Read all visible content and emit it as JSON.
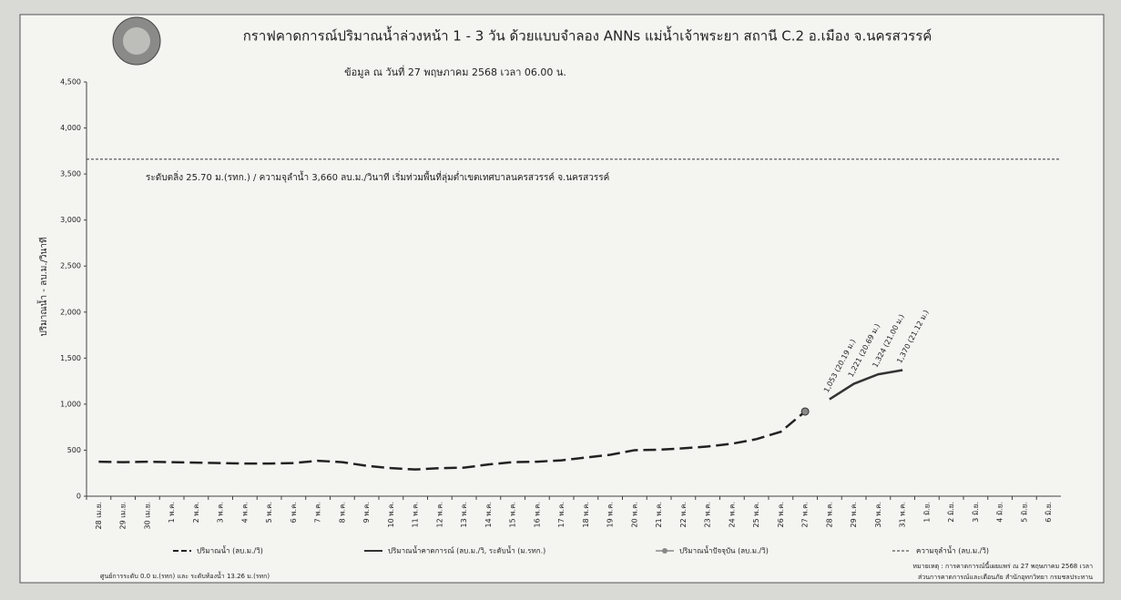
{
  "chart_data": {
    "type": "line",
    "title": "กราฟคาดการณ์ปริมาณน้ำล่วงหน้า 1 - 3 วัน  ด้วยแบบจำลอง ANNs แม่น้ำเจ้าพระยา สถานี C.2 อ.เมือง จ.นครสวรรค์",
    "subtitle": "ข้อมูล ณ วันที่     27 พฤษภาคม 2568     เวลา 06.00 น.",
    "y_label": "ปริมาณน้ำ - ลบ.ม./วินาที",
    "annotation": "ระดับตลิ่ง  25.70 ม.(รทก.)  / ความจุลำน้ำ 3,660 ลบ.ม./วินาที   เริ่มท่วมพื้นที่ลุ่มต่ำเขตเทศบาลนครสวรรค์ จ.นครสวรรค์",
    "footnote": "ศูนย์การระดับ 0.0 ม.(รทก) และ ระดับท้องน้ำ 13.26 ม.(รทก)",
    "note": "หมายเหตุ : การคาดการณ์นี้เผยแพร่ ณ  27 พฤษภาคม 2568  เวลา",
    "source": "ส่วนการคาดการณ์และเตือนภัย สำนักอุทกวิทยา กรมชลประทาน",
    "categories": [
      "28 เม.ย.",
      "29 เม.ย.",
      "30 เม.ย.",
      "1 พ.ค.",
      "2 พ.ค.",
      "3 พ.ค.",
      "4 พ.ค.",
      "5 พ.ค.",
      "6 พ.ค.",
      "7 พ.ค.",
      "8 พ.ค.",
      "9 พ.ค.",
      "10 พ.ค.",
      "11 พ.ค.",
      "12 พ.ค.",
      "13 พ.ค.",
      "14 พ.ค.",
      "15 พ.ค.",
      "16 พ.ค.",
      "17 พ.ค.",
      "18 พ.ค.",
      "19 พ.ค.",
      "20 พ.ค.",
      "21 พ.ค.",
      "22 พ.ค.",
      "23 พ.ค.",
      "24 พ.ค.",
      "25 พ.ค.",
      "26 พ.ค.",
      "27 พ.ค.",
      "28 พ.ค.",
      "29 พ.ค.",
      "30 พ.ค.",
      "31 พ.ค.",
      "1 มิ.ย.",
      "2 มิ.ย.",
      "3 มิ.ย.",
      "4 มิ.ย.",
      "5 มิ.ย.",
      "6 มิ.ย."
    ],
    "series": [
      {
        "name": "ปริมาณน้ำ (ลบ.ม./วิ)",
        "color": "#222222",
        "style": "dashed",
        "values": [
          375,
          370,
          375,
          370,
          365,
          360,
          355,
          355,
          360,
          385,
          370,
          330,
          305,
          290,
          305,
          310,
          345,
          370,
          375,
          390,
          420,
          450,
          500,
          505,
          520,
          540,
          570,
          620,
          700,
          920,
          null,
          null,
          null,
          null,
          null,
          null,
          null,
          null,
          null,
          null
        ]
      },
      {
        "name": "ปริมาณน้ำคาดการณ์ (ลบ.ม./วิ, ระดับน้ำ (ม.รทก.)",
        "color": "#333333",
        "style": "solid",
        "values": [
          null,
          null,
          null,
          null,
          null,
          null,
          null,
          null,
          null,
          null,
          null,
          null,
          null,
          null,
          null,
          null,
          null,
          null,
          null,
          null,
          null,
          null,
          null,
          null,
          null,
          null,
          null,
          null,
          null,
          null,
          1053,
          1221,
          1324,
          1370,
          null,
          null,
          null,
          null,
          null,
          null
        ],
        "value_labels": [
          null,
          null,
          null,
          null,
          null,
          null,
          null,
          null,
          null,
          null,
          null,
          null,
          null,
          null,
          null,
          null,
          null,
          null,
          null,
          null,
          null,
          null,
          null,
          null,
          null,
          null,
          null,
          null,
          null,
          null,
          "1,053 (20.19 ม.)",
          "1,221 (20.69 ม.)",
          "1,324 (21.00 ม.)",
          "1,370 (21.12 ม.)",
          null,
          null,
          null,
          null,
          null,
          null
        ]
      },
      {
        "name": "ปริมาณน้ำปัจจุบัน (ลบ.ม./วิ)",
        "color": "#888888",
        "style": "marker",
        "values": [
          null,
          null,
          null,
          null,
          null,
          null,
          null,
          null,
          null,
          null,
          null,
          null,
          null,
          null,
          null,
          null,
          null,
          null,
          null,
          null,
          null,
          null,
          null,
          null,
          null,
          null,
          null,
          null,
          null,
          920,
          null,
          null,
          null,
          null,
          null,
          null,
          null,
          null,
          null,
          null
        ]
      }
    ],
    "capacity": {
      "name": "ความจุลำน้ำ (ลบ.ม./วิ)",
      "value": 3660,
      "color": "#333333"
    },
    "ylim": [
      0,
      4500
    ],
    "yticks": [
      0,
      500,
      {
        "value": 1000,
        "label": "1,000"
      },
      {
        "value": 1500,
        "label": "1,500"
      },
      {
        "value": 2000,
        "label": "2,000"
      },
      {
        "value": 2500,
        "label": "2,500"
      },
      {
        "value": 3000,
        "label": "3,000"
      },
      {
        "value": 3500,
        "label": "3,500"
      },
      {
        "value": 4000,
        "label": "4,000"
      },
      {
        "value": 4500,
        "label": "4,500"
      }
    ],
    "grid": false
  }
}
